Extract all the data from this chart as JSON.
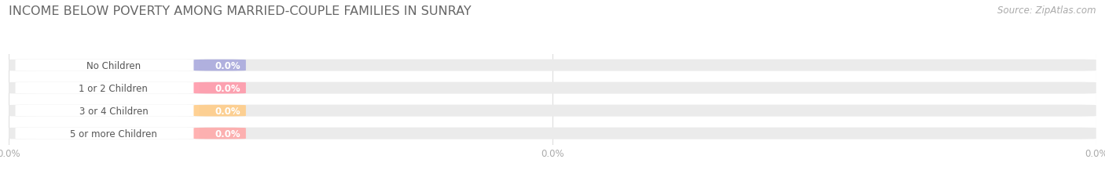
{
  "title": "INCOME BELOW POVERTY AMONG MARRIED-COUPLE FAMILIES IN SUNRAY",
  "source": "Source: ZipAtlas.com",
  "categories": [
    "No Children",
    "1 or 2 Children",
    "3 or 4 Children",
    "5 or more Children"
  ],
  "values": [
    0.0,
    0.0,
    0.0,
    0.0
  ],
  "bar_colors": [
    "#aaaadd",
    "#ff99aa",
    "#ffcc88",
    "#ffaaaa"
  ],
  "label_bg_color": "#f5f5f5",
  "bar_bg_color": "#ebebeb",
  "background_color": "#ffffff",
  "title_color": "#666666",
  "source_color": "#aaaaaa",
  "label_color": "#555555",
  "value_color": "#ffffff",
  "tick_color": "#aaaaaa",
  "grid_color": "#dddddd",
  "title_fontsize": 11.5,
  "label_fontsize": 8.5,
  "value_fontsize": 8.5,
  "tick_fontsize": 8.5,
  "source_fontsize": 8.5,
  "xticks": [
    0,
    0.5,
    1.0
  ],
  "xtick_labels": [
    "0.0%",
    "0.0%",
    "0.0%"
  ],
  "xtick_positions": [
    0.0,
    0.5,
    1.0
  ]
}
